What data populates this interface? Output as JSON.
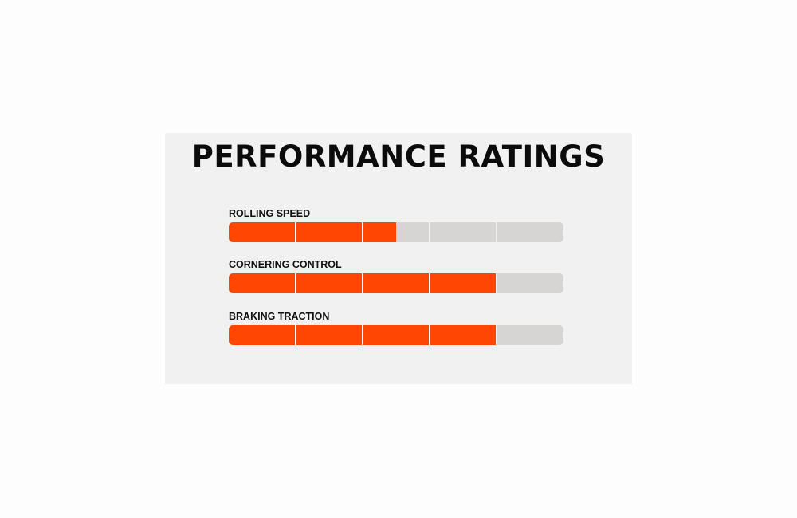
{
  "chart_data": {
    "type": "bar",
    "orientation": "horizontal",
    "title": "PERFORMANCE RATINGS",
    "categories": [
      "ROLLING SPEED",
      "CORNERING CONTROL",
      "BRAKING TRACTION"
    ],
    "values": [
      2.5,
      4,
      4
    ],
    "xlim": [
      0,
      5
    ],
    "segments": 5,
    "colors": {
      "fill": "#ff4603",
      "track": "#d6d5d4",
      "background": "#f1f1f1"
    }
  }
}
